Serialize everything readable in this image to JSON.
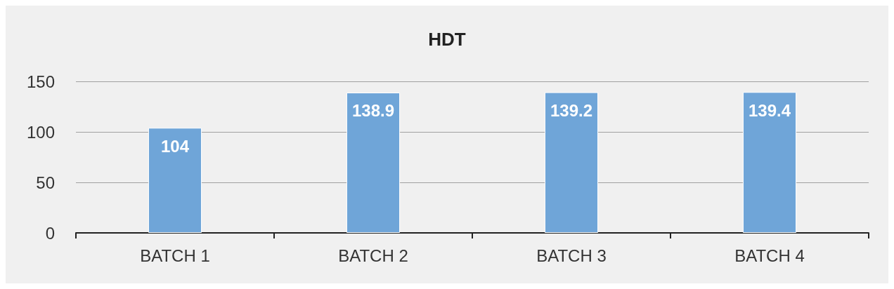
{
  "chart_data": {
    "type": "bar",
    "title": "HDT",
    "categories": [
      "BATCH 1",
      "BATCH 2",
      "BATCH 3",
      "BATCH 4"
    ],
    "values": [
      104,
      138.9,
      139.2,
      139.4
    ],
    "color": "#6fa5d8",
    "ylim": [
      0,
      150
    ],
    "yticks": [
      0,
      50,
      100,
      150
    ],
    "grid": "y",
    "data_labels": true
  }
}
